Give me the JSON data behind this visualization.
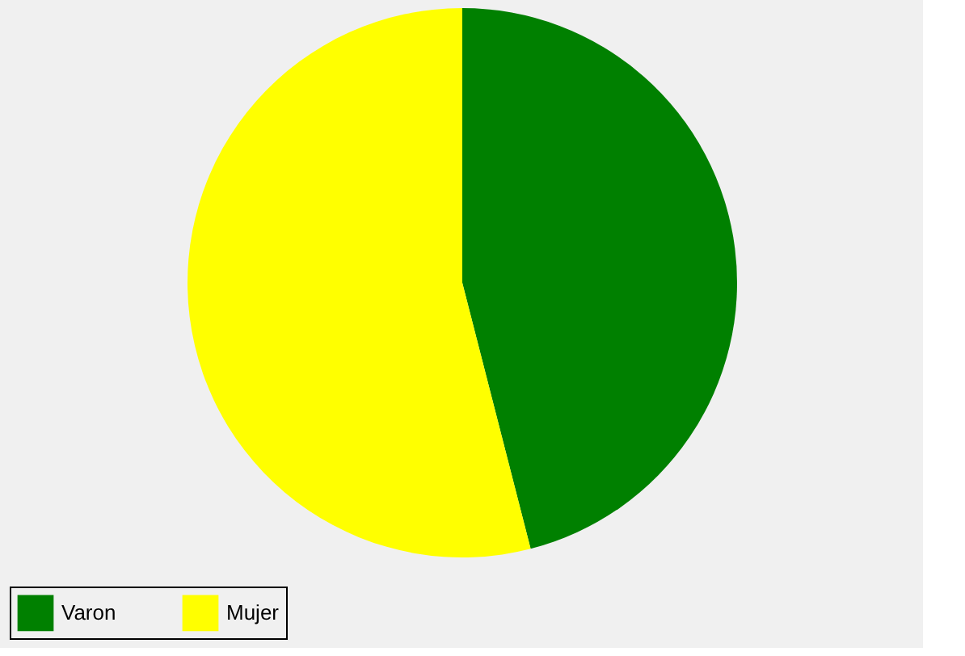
{
  "chart_data": {
    "type": "pie",
    "categories": [
      "Varon",
      "Mujer"
    ],
    "values": [
      46,
      54
    ],
    "colors": [
      "#008000",
      "#ffff00"
    ],
    "legend": "bottom"
  }
}
